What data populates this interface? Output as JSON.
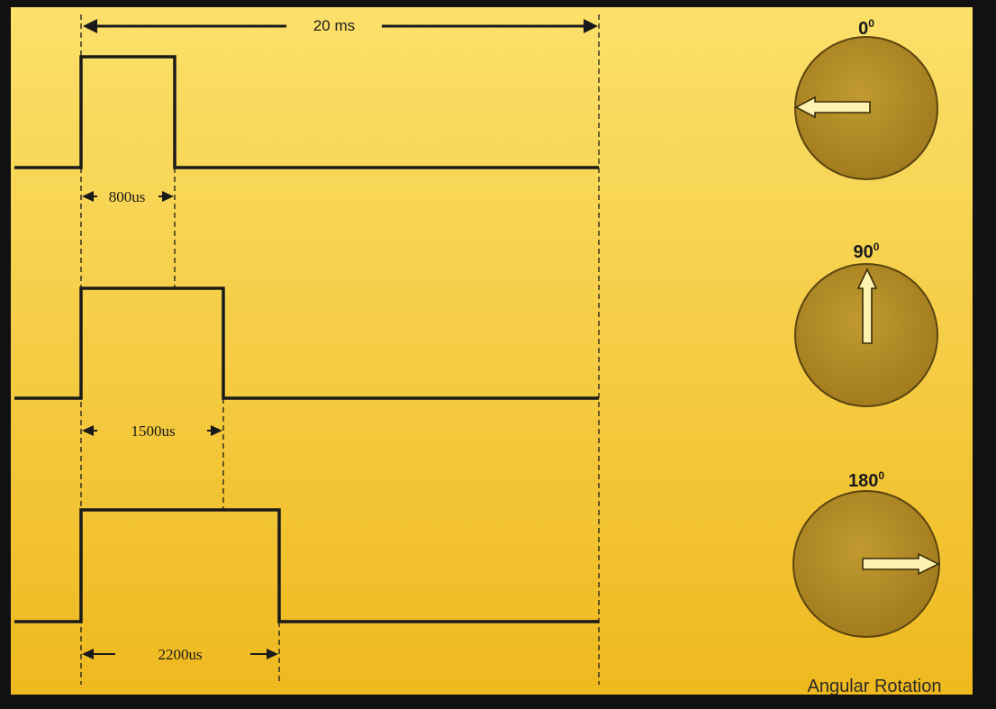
{
  "period_label": "20 ms",
  "rotation_caption": "Angular Rotation",
  "colors": {
    "background_top": "#fbe06a",
    "background_bottom": "#efb91f",
    "line": "#1a1a1a",
    "dial_fill": "#b18a26",
    "dial_stroke": "#5a4410",
    "arrow_fill": "#fdf2b0",
    "frame": "#111111"
  },
  "pulses": [
    {
      "width_label": "800us",
      "angle_value": "0",
      "angle_superscript": "0",
      "arrow_icon": "left-arrow-icon"
    },
    {
      "width_label": "1500us",
      "angle_value": "90",
      "angle_superscript": "0",
      "arrow_icon": "up-arrow-icon"
    },
    {
      "width_label": "2200us",
      "angle_value": "180",
      "angle_superscript": "0",
      "arrow_icon": "right-arrow-icon"
    }
  ]
}
